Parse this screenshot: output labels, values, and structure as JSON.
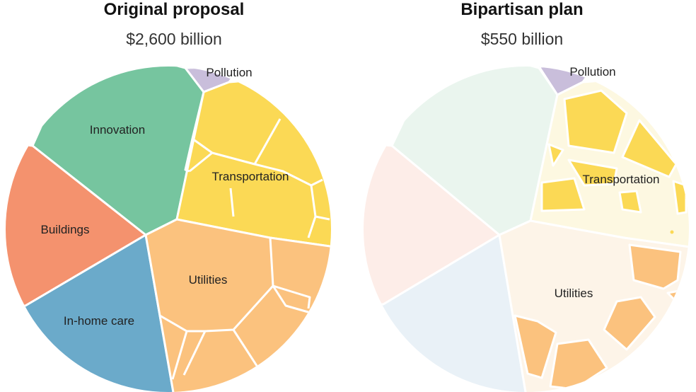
{
  "chart_data": [
    {
      "type": "voronoi-treemap",
      "title": "Original proposal",
      "subtitle": "$2,600 billion",
      "categories": [
        {
          "name": "Innovation",
          "label": "Innovation",
          "color": "#76c59f",
          "funded": true
        },
        {
          "name": "Buildings",
          "label": "Buildings",
          "color": "#f4926e",
          "funded": true
        },
        {
          "name": "In-home care",
          "label": "In-home care",
          "color": "#6baaca",
          "funded": true
        },
        {
          "name": "Utilities",
          "label": "Utilities",
          "color": "#fbc27e",
          "funded": true
        },
        {
          "name": "Transportation",
          "label": "Transportation",
          "color": "#fbd955",
          "funded": true
        },
        {
          "name": "Pollution",
          "label": "Pollution",
          "color": "#c9bedb",
          "funded": true
        }
      ]
    },
    {
      "type": "voronoi-treemap",
      "title": "Bipartisan plan",
      "subtitle": "$550 billion",
      "categories": [
        {
          "name": "Innovation",
          "label": "",
          "color": "#76c59f",
          "funded": false
        },
        {
          "name": "Buildings",
          "label": "",
          "color": "#f4926e",
          "funded": false
        },
        {
          "name": "In-home care",
          "label": "",
          "color": "#6baaca",
          "funded": false
        },
        {
          "name": "Utilities",
          "label": "Utilities",
          "color": "#fbc27e",
          "funded": "partial"
        },
        {
          "name": "Transportation",
          "label": "Transportation",
          "color": "#fbd955",
          "funded": "partial"
        },
        {
          "name": "Pollution",
          "label": "Pollution",
          "color": "#c9bedb",
          "funded": true
        }
      ]
    }
  ],
  "colors": {
    "faded_innovation": "#eaf5ee",
    "faded_buildings": "#fdede8",
    "faded_inhome": "#e9f1f7",
    "faded_utilities": "#fdf4e8",
    "faded_transport": "#fdf8e1"
  }
}
